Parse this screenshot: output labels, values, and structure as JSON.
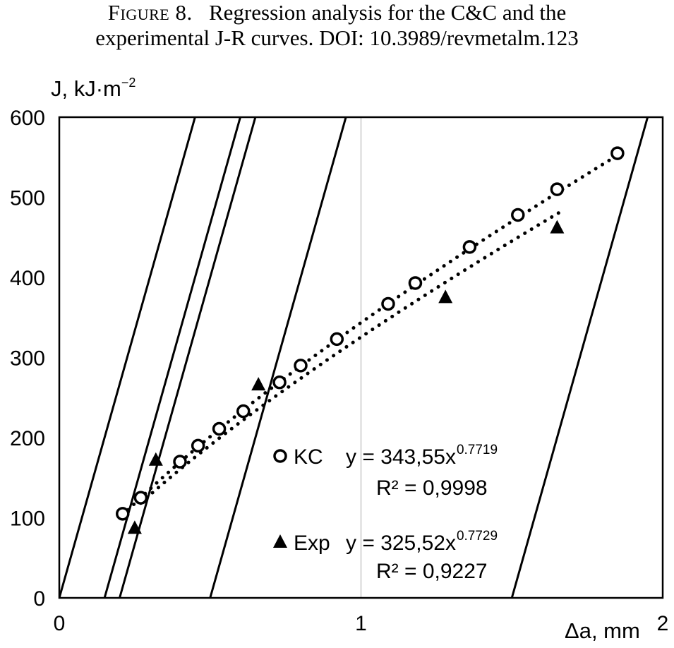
{
  "caption": {
    "label": "Figure 8.",
    "line1": "Regression analysis for the C&C and the",
    "line2": "experimental J-R curves. DOI: 10.3989/revmetalm.123"
  },
  "chart_data": {
    "type": "scatter",
    "ylabel_main": "J, kJ·m",
    "ylabel_exp": "−2",
    "xlabel": "Δa, mm",
    "xlim": [
      0,
      2
    ],
    "ylim": [
      0,
      600
    ],
    "xticks": [
      "0",
      "1",
      "2"
    ],
    "yticks": [
      "0",
      "100",
      "200",
      "300",
      "400",
      "500",
      "600"
    ],
    "grid": "x-only",
    "series": [
      {
        "name": "KC",
        "marker": "circle",
        "points": [
          [
            0.21,
            105
          ],
          [
            0.27,
            125
          ],
          [
            0.4,
            170
          ],
          [
            0.46,
            190
          ],
          [
            0.53,
            211
          ],
          [
            0.61,
            233
          ],
          [
            0.73,
            269
          ],
          [
            0.8,
            290
          ],
          [
            0.92,
            323
          ],
          [
            1.09,
            367
          ],
          [
            1.18,
            393
          ],
          [
            1.36,
            438
          ],
          [
            1.52,
            478
          ],
          [
            1.65,
            510
          ],
          [
            1.85,
            555
          ]
        ],
        "fit": {
          "a": 343.55,
          "b": 0.7719,
          "x_from": 0.21,
          "x_to": 1.85
        },
        "equation": "y = 343,55x",
        "exponent": "0.7719",
        "r2": "R² = 0,9998"
      },
      {
        "name": "Exp",
        "marker": "triangle",
        "points": [
          [
            0.25,
            87
          ],
          [
            0.32,
            172
          ],
          [
            0.66,
            266
          ],
          [
            1.28,
            375
          ],
          [
            1.65,
            462
          ]
        ],
        "fit": {
          "a": 325.52,
          "b": 0.7729,
          "x_from": 0.27,
          "x_to": 1.66
        },
        "equation": "y = 325,52x",
        "exponent": "0.7729",
        "r2": "R² = 0,9227"
      }
    ],
    "lines": [
      {
        "x0": 0.0,
        "x1": 0.45
      },
      {
        "x0": 0.15,
        "x1": 0.6
      },
      {
        "x0": 0.2,
        "x1": 0.65
      },
      {
        "x0": 0.5,
        "x1": 0.95
      },
      {
        "x0": 1.5,
        "x1": 1.95
      }
    ]
  },
  "colors": {
    "ink": "#000000",
    "grid": "#c8c8c8",
    "background": "#ffffff"
  }
}
